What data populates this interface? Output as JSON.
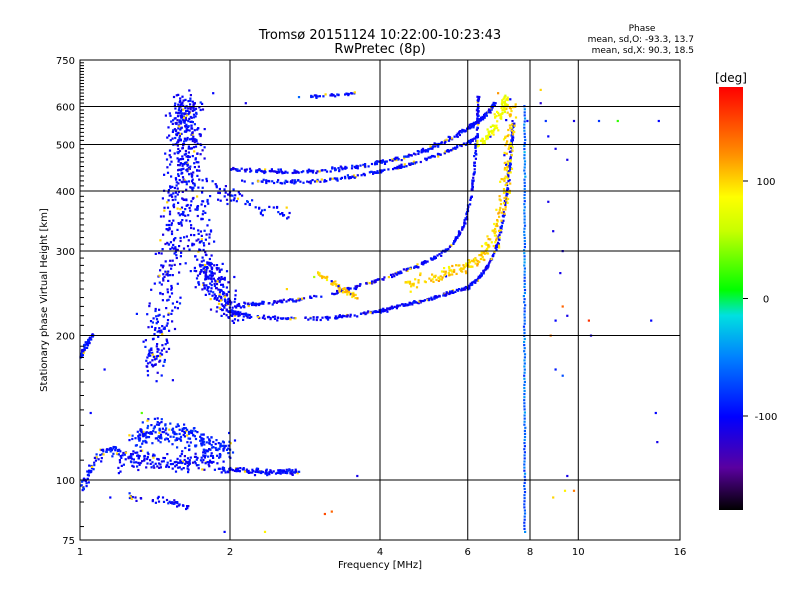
{
  "chart_data": {
    "type": "scatter",
    "title": "Tromsø 20151124 10:22:00-10:23:43",
    "subtitle": "RwPretec (8p)",
    "xlabel": "Frequency [MHz]",
    "ylabel": "Stationary phase Virtual Height [km]",
    "x_scale": "log",
    "y_scale": "log",
    "xlim": [
      1,
      16
    ],
    "ylim": [
      75,
      750
    ],
    "x_ticks": [
      1,
      2,
      4,
      6,
      8,
      10,
      16
    ],
    "y_ticks": [
      75,
      100,
      200,
      300,
      400,
      500,
      600,
      750
    ],
    "grid": true,
    "stats": {
      "heading": "Phase",
      "o_line": "mean, sd,O: -93.3, 13.7",
      "x_line": "mean, sd,X:  90.3, 18.5"
    },
    "colorbar": {
      "label": "[deg]",
      "range": [
        -180,
        180
      ],
      "ticks": [
        100,
        0,
        -100
      ],
      "tick_labels": [
        "100",
        "0",
        "-100"
      ]
    },
    "traces": [
      {
        "kind": "curve",
        "phase": -95,
        "spread": 0.018,
        "n": 60,
        "points": [
          [
            1.0,
            180
          ],
          [
            1.03,
            192
          ],
          [
            1.06,
            200
          ]
        ]
      },
      {
        "kind": "curve",
        "phase": -95,
        "spread": 0.035,
        "n": 80,
        "points": [
          [
            1.0,
            95
          ],
          [
            1.04,
            103
          ],
          [
            1.08,
            112
          ],
          [
            1.15,
            116
          ],
          [
            1.25,
            113
          ]
        ]
      },
      {
        "kind": "region",
        "phase": -100,
        "spread": 0.1,
        "n": 900,
        "points": [
          [
            1.4,
            170
          ],
          [
            1.45,
            200
          ],
          [
            1.5,
            260
          ],
          [
            1.55,
            330
          ],
          [
            1.58,
            420
          ],
          [
            1.6,
            520
          ],
          [
            1.62,
            610
          ],
          [
            1.65,
            560
          ],
          [
            1.68,
            460
          ],
          [
            1.72,
            350
          ],
          [
            1.78,
            280
          ],
          [
            1.85,
            260
          ],
          [
            1.95,
            235
          ],
          [
            2.05,
            220
          ]
        ]
      },
      {
        "kind": "region",
        "phase": -90,
        "spread": 0.08,
        "n": 250,
        "points": [
          [
            1.3,
            120
          ],
          [
            1.4,
            128
          ],
          [
            1.55,
            125
          ],
          [
            1.7,
            122
          ],
          [
            1.85,
            118
          ],
          [
            2.0,
            115
          ]
        ]
      },
      {
        "kind": "region",
        "phase": -100,
        "spread": 0.06,
        "n": 160,
        "points": [
          [
            1.2,
            108
          ],
          [
            1.3,
            112
          ],
          [
            1.4,
            110
          ],
          [
            1.55,
            108
          ],
          [
            1.7,
            109
          ],
          [
            1.85,
            110
          ]
        ]
      },
      {
        "kind": "curve",
        "phase": -95,
        "spread": 0.02,
        "n": 120,
        "points": [
          [
            1.9,
            105
          ],
          [
            2.1,
            105
          ],
          [
            2.3,
            104
          ],
          [
            2.5,
            104
          ],
          [
            2.75,
            104
          ]
        ]
      },
      {
        "kind": "curve",
        "phase": -100,
        "spread": 0.025,
        "n": 40,
        "points": [
          [
            1.25,
            92
          ],
          [
            1.5,
            90
          ],
          [
            1.65,
            88
          ]
        ]
      },
      {
        "kind": "curve",
        "phase": -100,
        "spread": 0.012,
        "n": 420,
        "points": [
          [
            2.0,
            225
          ],
          [
            2.2,
            219
          ],
          [
            2.5,
            217
          ],
          [
            3.0,
            217
          ],
          [
            3.5,
            220
          ],
          [
            4.0,
            225
          ],
          [
            4.5,
            232
          ],
          [
            5.0,
            238
          ],
          [
            5.5,
            245
          ],
          [
            6.0,
            252
          ],
          [
            6.3,
            262
          ],
          [
            6.6,
            280
          ],
          [
            6.9,
            310
          ],
          [
            7.1,
            360
          ],
          [
            7.25,
            430
          ],
          [
            7.35,
            500
          ],
          [
            7.4,
            560
          ]
        ]
      },
      {
        "kind": "curve",
        "phase": -100,
        "spread": 0.012,
        "n": 320,
        "points": [
          [
            2.0,
            230
          ],
          [
            2.3,
            233
          ],
          [
            2.7,
            237
          ],
          [
            3.2,
            245
          ],
          [
            3.7,
            255
          ],
          [
            4.2,
            266
          ],
          [
            4.7,
            278
          ],
          [
            5.2,
            292
          ],
          [
            5.6,
            310
          ],
          [
            5.9,
            340
          ],
          [
            6.1,
            390
          ],
          [
            6.2,
            460
          ],
          [
            6.28,
            560
          ],
          [
            6.3,
            630
          ]
        ]
      },
      {
        "kind": "region",
        "phase": 100,
        "spread": 0.04,
        "n": 260,
        "points": [
          [
            4.5,
            255
          ],
          [
            5.0,
            262
          ],
          [
            5.5,
            270
          ],
          [
            6.0,
            280
          ],
          [
            6.4,
            290
          ],
          [
            6.7,
            310
          ],
          [
            6.9,
            340
          ],
          [
            7.1,
            380
          ],
          [
            7.2,
            450
          ],
          [
            7.3,
            520
          ],
          [
            7.3,
            600
          ]
        ]
      },
      {
        "kind": "curve",
        "phase": 105,
        "spread": 0.02,
        "n": 60,
        "points": [
          [
            3.0,
            270
          ],
          [
            3.2,
            258
          ],
          [
            3.4,
            248
          ],
          [
            3.6,
            240
          ]
        ]
      },
      {
        "kind": "curve",
        "phase": -98,
        "spread": 0.015,
        "n": 320,
        "points": [
          [
            2.0,
            445
          ],
          [
            2.3,
            440
          ],
          [
            2.6,
            438
          ],
          [
            3.0,
            440
          ],
          [
            3.5,
            448
          ],
          [
            4.0,
            458
          ],
          [
            4.5,
            472
          ],
          [
            5.0,
            490
          ],
          [
            5.5,
            512
          ],
          [
            6.0,
            540
          ],
          [
            6.3,
            560
          ],
          [
            6.6,
            585
          ],
          [
            6.8,
            610
          ]
        ]
      },
      {
        "kind": "curve",
        "phase": -98,
        "spread": 0.012,
        "n": 200,
        "points": [
          [
            2.1,
            420
          ],
          [
            2.5,
            418
          ],
          [
            3.0,
            420
          ],
          [
            3.5,
            428
          ],
          [
            4.0,
            440
          ],
          [
            4.5,
            452
          ],
          [
            5.0,
            468
          ],
          [
            5.5,
            485
          ],
          [
            6.0,
            505
          ],
          [
            6.3,
            520
          ]
        ]
      },
      {
        "kind": "region",
        "phase": 80,
        "spread": 0.03,
        "n": 90,
        "points": [
          [
            6.3,
            500
          ],
          [
            6.6,
            520
          ],
          [
            6.9,
            560
          ],
          [
            7.1,
            600
          ],
          [
            7.2,
            630
          ]
        ]
      },
      {
        "kind": "curve",
        "phase": -95,
        "spread": 0.012,
        "n": 30,
        "points": [
          [
            2.9,
            630
          ],
          [
            3.2,
            635
          ],
          [
            3.6,
            640
          ]
        ]
      },
      {
        "kind": "region",
        "phase": -95,
        "spread": 0.05,
        "n": 60,
        "points": [
          [
            1.85,
            410
          ],
          [
            2.0,
            390
          ],
          [
            2.3,
            370
          ],
          [
            2.6,
            360
          ]
        ]
      },
      {
        "kind": "vline",
        "phase": -60,
        "x": 7.8,
        "n": 140,
        "range": [
          78,
          610
        ]
      }
    ],
    "sparse_points": [
      [
        1.85,
        640,
        -100
      ],
      [
        2.15,
        610,
        -110
      ],
      [
        2.75,
        628,
        -60
      ],
      [
        3.0,
        630,
        -90
      ],
      [
        3.5,
        640,
        -100
      ],
      [
        1.3,
        222,
        -90
      ],
      [
        1.33,
        138,
        30
      ],
      [
        1.12,
        170,
        -100
      ],
      [
        1.05,
        138,
        -100
      ],
      [
        1.15,
        92,
        -100
      ],
      [
        1.95,
        78,
        -100
      ],
      [
        2.35,
        78,
        90
      ],
      [
        3.1,
        85,
        150
      ],
      [
        3.2,
        86,
        140
      ],
      [
        3.6,
        102,
        -110
      ],
      [
        2.95,
        265,
        50
      ],
      [
        2.6,
        250,
        100
      ],
      [
        5.5,
        278,
        80
      ],
      [
        6.0,
        280,
        120
      ],
      [
        8.7,
        520,
        -100
      ],
      [
        9.0,
        490,
        -110
      ],
      [
        9.5,
        465,
        -110
      ],
      [
        9.8,
        560,
        -110
      ],
      [
        8.6,
        560,
        -80
      ],
      [
        11.0,
        560,
        -80
      ],
      [
        12.0,
        560,
        20
      ],
      [
        14.5,
        560,
        -100
      ],
      [
        8.4,
        650,
        100
      ],
      [
        9.3,
        230,
        140
      ],
      [
        9.5,
        220,
        -110
      ],
      [
        10.5,
        215,
        160
      ],
      [
        10.6,
        200,
        -110
      ],
      [
        14.0,
        215,
        -100
      ],
      [
        14.3,
        138,
        -100
      ],
      [
        14.4,
        120,
        -110
      ],
      [
        9.0,
        170,
        -90
      ],
      [
        9.3,
        165,
        -70
      ],
      [
        8.8,
        200,
        130
      ],
      [
        9.0,
        215,
        -100
      ],
      [
        8.9,
        92,
        100
      ],
      [
        9.4,
        95,
        90
      ],
      [
        9.5,
        102,
        -110
      ],
      [
        9.8,
        95,
        130
      ],
      [
        8.4,
        610,
        -120
      ],
      [
        6.9,
        640,
        120
      ],
      [
        8.7,
        380,
        -110
      ],
      [
        8.9,
        330,
        -110
      ],
      [
        9.2,
        270,
        -110
      ],
      [
        9.3,
        300,
        -110
      ],
      [
        7.9,
        560,
        -100
      ]
    ]
  }
}
